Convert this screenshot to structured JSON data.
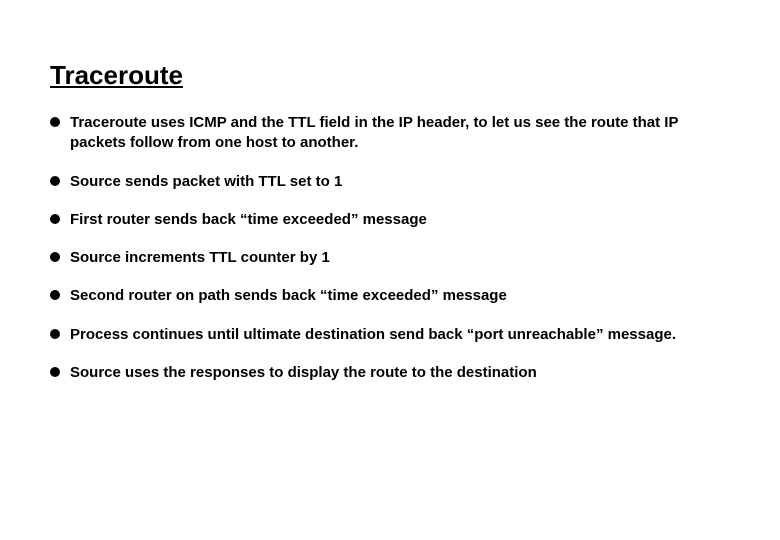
{
  "title": "Traceroute",
  "bullets": [
    "Traceroute uses ICMP and the TTL field in the IP header, to let us see the route that IP packets follow from one host to another.",
    "Source sends packet with TTL set to 1",
    "First router sends back “time exceeded” message",
    "Source increments TTL counter by 1",
    "Second router on path sends back “time exceeded”  message",
    "Process continues until ultimate destination send back “port unreachable” message.",
    "Source uses the responses to display the route to the destination"
  ]
}
